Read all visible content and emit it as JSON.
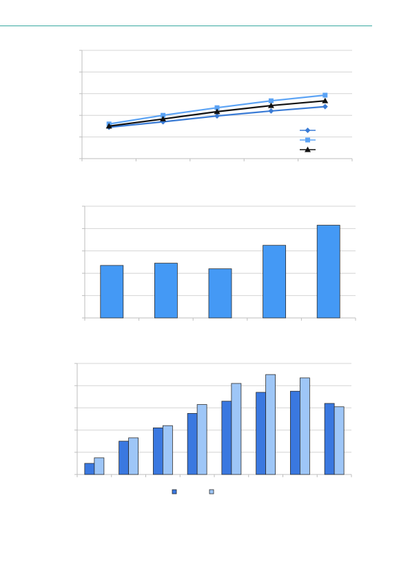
{
  "page": {
    "header_rule_color": "#36a8a0"
  },
  "chart_data": [
    {
      "type": "line",
      "categories": [
        "",
        "",
        "",
        "",
        ""
      ],
      "ylim": [
        0,
        5
      ],
      "grid": true,
      "legend": "bottom-right",
      "series": [
        {
          "values": [
            1.45,
            1.7,
            1.97,
            2.2,
            2.4
          ],
          "color": "#3a7bd5",
          "marker": "diamond"
        },
        {
          "values": [
            1.6,
            2.0,
            2.35,
            2.67,
            2.93
          ],
          "color": "#5ba3f5",
          "marker": "square"
        },
        {
          "values": [
            1.5,
            1.83,
            2.17,
            2.45,
            2.67
          ],
          "color": "#111111",
          "marker": "triangle"
        }
      ]
    },
    {
      "type": "bar",
      "categories": [
        "",
        "",
        "",
        "",
        ""
      ],
      "ylim": [
        0,
        5
      ],
      "grid": true,
      "series": [
        {
          "values": [
            2.35,
            2.45,
            2.2,
            3.25,
            4.15
          ],
          "color": "#4499f5"
        }
      ]
    },
    {
      "type": "bar",
      "categories": [
        "",
        "",
        "",
        "",
        "",
        "",
        "",
        ""
      ],
      "ylim": [
        0,
        5
      ],
      "grid": true,
      "legend": "bottom",
      "series": [
        {
          "values": [
            0.5,
            1.5,
            2.1,
            2.75,
            3.3,
            3.7,
            3.75,
            3.2
          ],
          "color": "#3a78e0"
        },
        {
          "values": [
            0.75,
            1.65,
            2.2,
            3.15,
            4.1,
            4.5,
            4.35,
            3.05
          ],
          "color": "#9ec6f7"
        }
      ]
    }
  ]
}
